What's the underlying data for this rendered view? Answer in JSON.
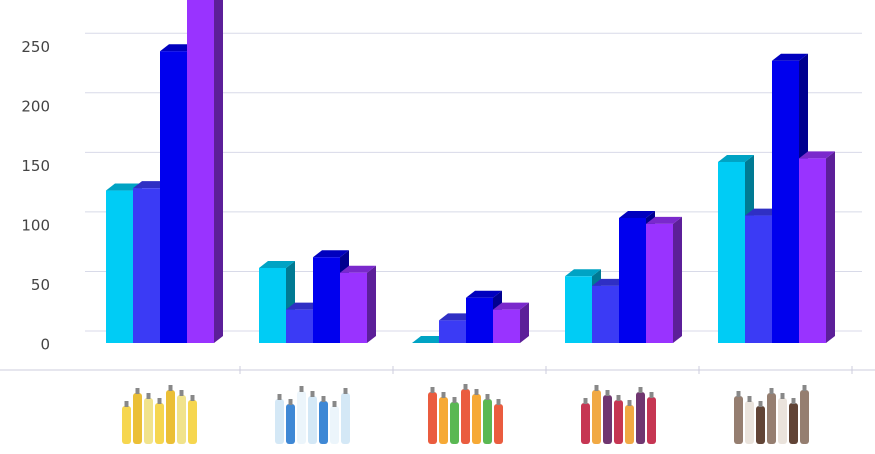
{
  "chart_data": {
    "type": "bar3d",
    "categories": [
      null,
      null,
      null,
      null,
      null
    ],
    "series": [
      {
        "color": "#00ccf5",
        "values": [
          128,
          63,
          0,
          56,
          152
        ]
      },
      {
        "color": "#3b3bf5",
        "values": [
          130,
          28,
          19,
          48,
          107
        ]
      },
      {
        "color": "#0000ee",
        "values": [
          245,
          72,
          38,
          105,
          237
        ]
      },
      {
        "color": "#9933ff",
        "values": [
          300,
          59,
          28,
          100,
          155
        ]
      }
    ],
    "ylim": [
      0,
      288
    ],
    "yticks": [
      0,
      50,
      100,
      150,
      200,
      250
    ],
    "grid": true
  }
}
